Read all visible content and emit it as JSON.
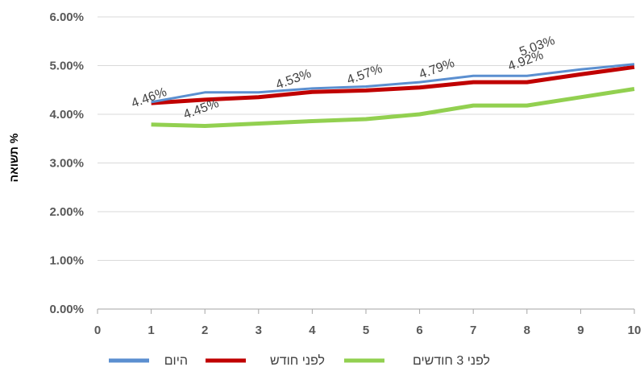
{
  "chart_data": {
    "type": "line",
    "x": [
      1,
      2,
      3,
      4,
      5,
      6,
      7,
      8,
      9,
      10
    ],
    "xlim": [
      0,
      10
    ],
    "x_ticks": [
      "0",
      "1",
      "2",
      "3",
      "4",
      "5",
      "6",
      "7",
      "8",
      "9",
      "10"
    ],
    "ylim": [
      0,
      6
    ],
    "y_ticks": [
      "0.00%",
      "1.00%",
      "2.00%",
      "3.00%",
      "4.00%",
      "5.00%",
      "6.00%"
    ],
    "ylabel": "תשואה %",
    "xlabel": "",
    "grid": true,
    "legend_position": "bottom",
    "series": [
      {
        "name": "היום",
        "color": "#5B8FD0",
        "width": 3,
        "values": [
          4.25,
          4.45,
          4.45,
          4.53,
          4.57,
          4.66,
          4.79,
          4.79,
          4.92,
          5.03
        ]
      },
      {
        "name": "לפני חודש",
        "color": "#C00000",
        "width": 5,
        "values": [
          4.23,
          4.3,
          4.35,
          4.46,
          4.49,
          4.55,
          4.66,
          4.66,
          4.82,
          4.97
        ]
      },
      {
        "name": "לפני 3 חודשים",
        "color": "#92D050",
        "width": 5,
        "values": [
          3.79,
          3.76,
          3.81,
          3.86,
          3.9,
          4.0,
          4.18,
          4.18,
          4.35,
          4.52
        ]
      }
    ],
    "data_labels": [
      {
        "x": 1,
        "text": "4.46%"
      },
      {
        "x": 2,
        "text": "4.45%"
      },
      {
        "x": 3,
        "text": "4.53%"
      },
      {
        "x": 5,
        "text": "4.57%"
      },
      {
        "x": 6,
        "text": "4.79%"
      },
      {
        "x": 8,
        "text": "4.92%"
      },
      {
        "x": 8.5,
        "text": "5.03%"
      }
    ]
  }
}
